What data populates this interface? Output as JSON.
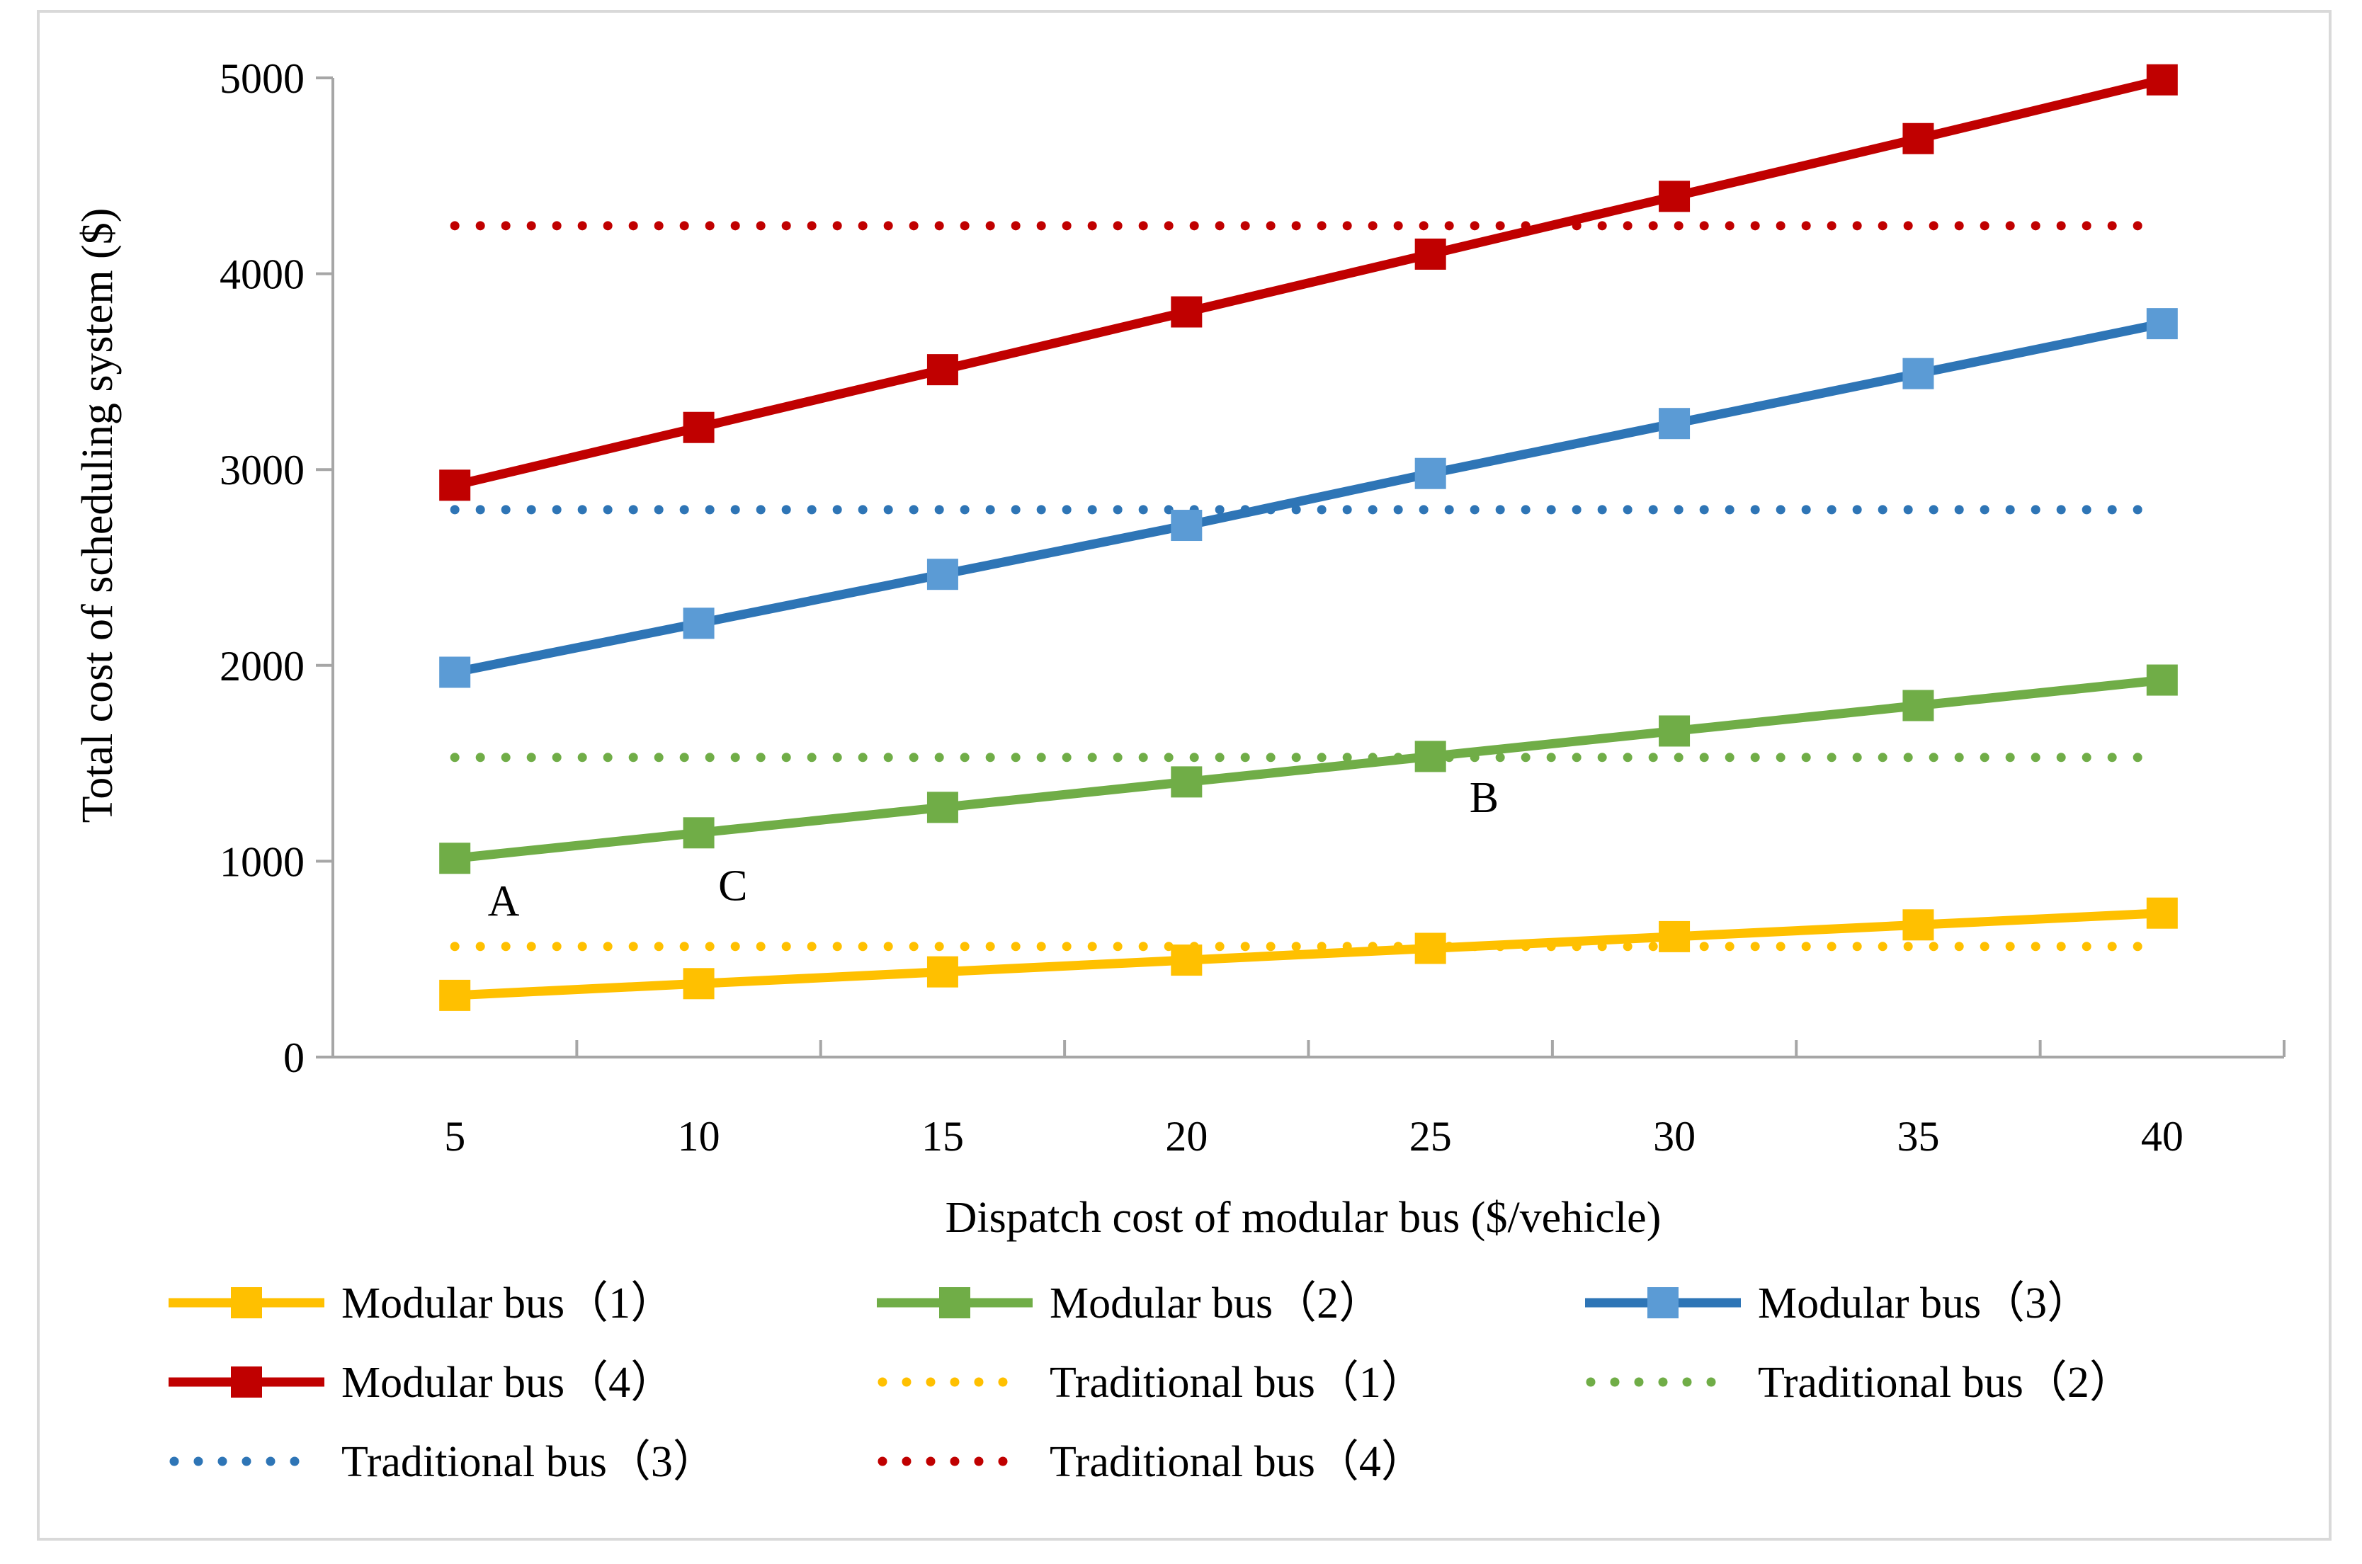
{
  "chart_data": {
    "type": "line",
    "title": "",
    "xlabel": "Dispatch cost of modular bus ($/vehicle)",
    "ylabel": "Total cost of scheduling system ($)",
    "categories": [
      "5",
      "10",
      "15",
      "20",
      "25",
      "30",
      "35",
      "40"
    ],
    "x": [
      5,
      10,
      15,
      20,
      25,
      30,
      35,
      40
    ],
    "ylim": [
      0,
      5000
    ],
    "yticks": [
      "0",
      "1000",
      "2000",
      "3000",
      "4000",
      "5000"
    ],
    "grid": false,
    "legend_position": "bottom",
    "series": [
      {
        "name": "Modular bus（1）",
        "style": "solid-square",
        "color": "#FFC000",
        "values": [
          315,
          375,
          435,
          495,
          555,
          615,
          675,
          735
        ]
      },
      {
        "name": "Modular bus（2）",
        "style": "solid-square",
        "color": "#70AD47",
        "values": [
          1015,
          1145,
          1275,
          1405,
          1535,
          1665,
          1795,
          1925
        ]
      },
      {
        "name": "Modular bus（3）",
        "style": "solid-square",
        "color": "#2E75B6",
        "marker_color": "#5B9BD5",
        "values": [
          1965,
          2215,
          2465,
          2715,
          2980,
          3235,
          3490,
          3745
        ]
      },
      {
        "name": "Modular bus（4）",
        "style": "solid-square",
        "color": "#C00000",
        "values": [
          2920,
          3215,
          3510,
          3805,
          4100,
          4395,
          4690,
          4990
        ]
      },
      {
        "name": "Traditional bus（1）",
        "style": "dotted",
        "color": "#FFC000",
        "values": [
          565,
          565,
          565,
          565,
          565,
          565,
          565,
          565
        ]
      },
      {
        "name": "Traditional bus（2）",
        "style": "dotted",
        "color": "#70AD47",
        "values": [
          1530,
          1530,
          1530,
          1530,
          1530,
          1530,
          1530,
          1530
        ]
      },
      {
        "name": "Traditional bus（3）",
        "style": "dotted",
        "color": "#2E75B6",
        "values": [
          2795,
          2795,
          2795,
          2795,
          2795,
          2795,
          2795,
          2795
        ]
      },
      {
        "name": "Traditional bus（4）",
        "style": "dotted",
        "color": "#C00000",
        "values": [
          4245,
          4245,
          4245,
          4245,
          4245,
          4245,
          4245,
          4245
        ]
      }
    ],
    "annotations": [
      {
        "text": "A",
        "x": 6,
        "y": 800
      },
      {
        "text": "C",
        "x": 10.7,
        "y": 880
      },
      {
        "text": "B",
        "x": 26.1,
        "y": 1330
      }
    ]
  }
}
